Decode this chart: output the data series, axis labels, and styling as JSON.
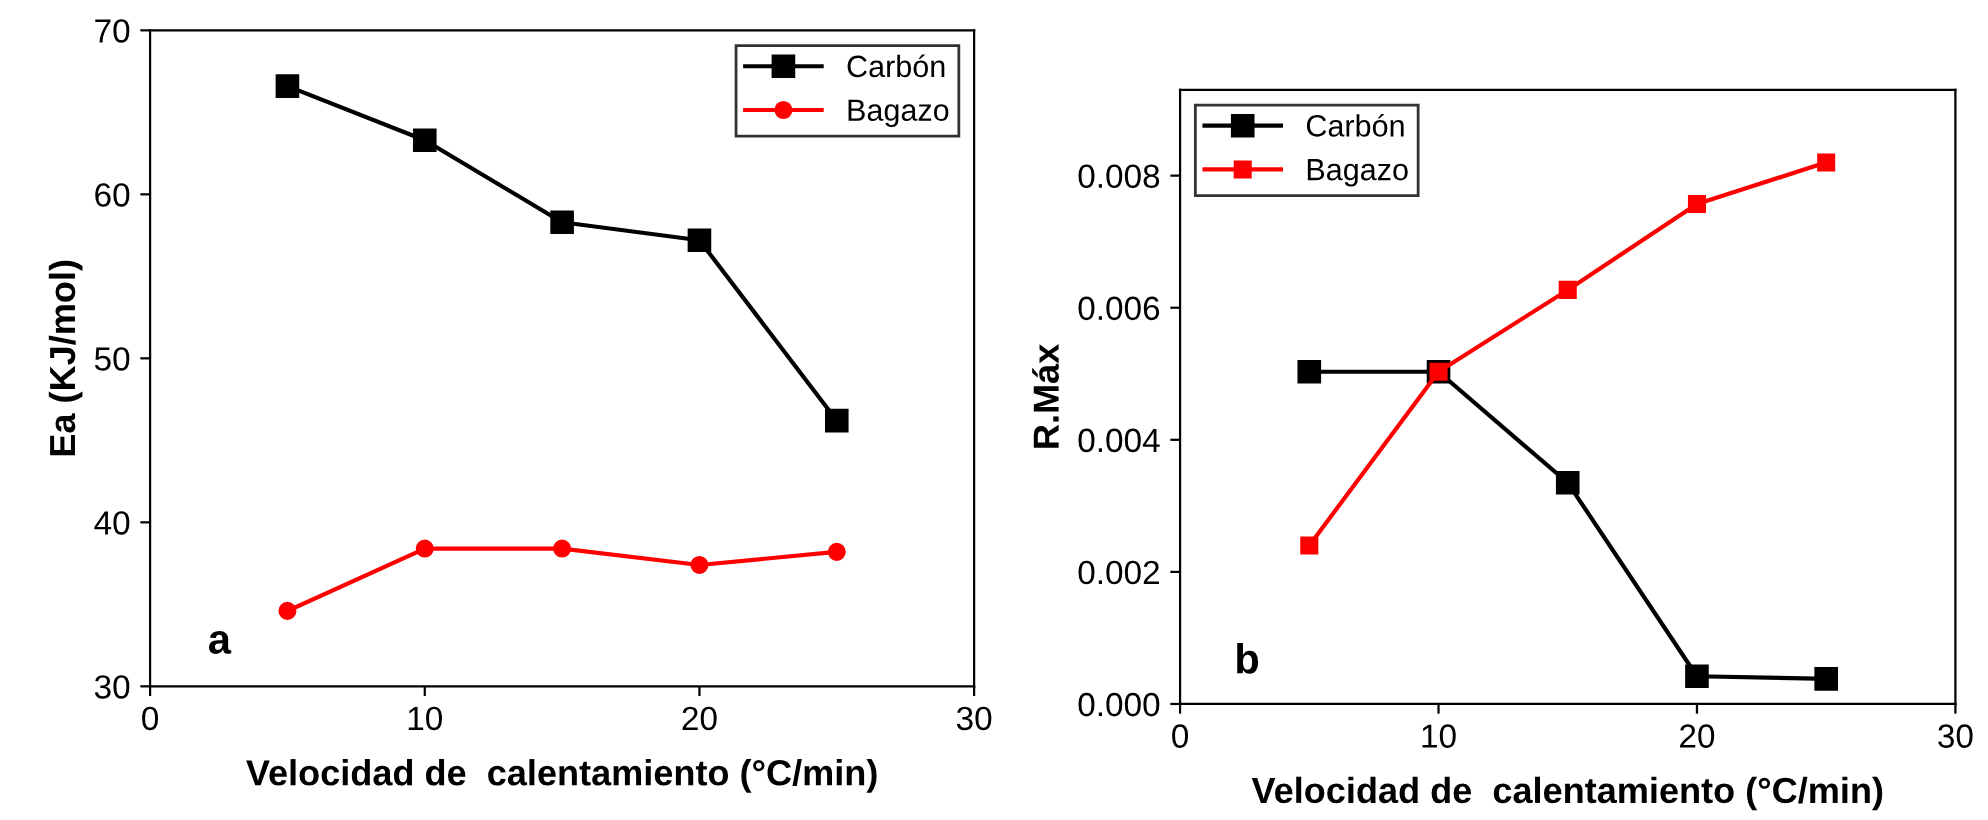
{
  "chart_data": [
    {
      "type": "line",
      "xlabel": "Velocidad de  calentamiento (°C/min)",
      "ylabel": "Ea (KJ/mol)",
      "x": [
        5,
        10,
        15,
        20,
        25
      ],
      "series": [
        {
          "name": "Carbón",
          "color": "#000000",
          "marker": "square",
          "values": [
            66.6,
            63.3,
            58.3,
            57.2,
            46.2
          ]
        },
        {
          "name": "Bagazo",
          "color": "#ff0000",
          "marker": "circle",
          "values": [
            34.6,
            38.4,
            38.4,
            37.4,
            38.2
          ]
        }
      ],
      "xlim": [
        0,
        30
      ],
      "xticks": [
        0,
        10,
        20,
        30
      ],
      "ylim": [
        30,
        70
      ],
      "yticks": [
        30,
        40,
        50,
        60,
        70
      ],
      "legend": "top right",
      "grid": false,
      "annotations": [
        "a"
      ]
    },
    {
      "type": "line",
      "xlabel": "Velocidad de  calentamiento (°C/min)",
      "ylabel": "R.Máx",
      "x": [
        5,
        10,
        15,
        20,
        25
      ],
      "series": [
        {
          "name": "Carbón",
          "color": "#000000",
          "marker": "square",
          "values": [
            0.00503,
            0.00503,
            0.00335,
            0.00042,
            0.00038
          ]
        },
        {
          "name": "Bagazo",
          "color": "#ff0000",
          "marker": "square",
          "values": [
            0.0024,
            0.00503,
            0.00627,
            0.00757,
            0.0082
          ]
        }
      ],
      "xlim": [
        0,
        30
      ],
      "xticks": [
        0,
        10,
        20,
        30
      ],
      "ylim": [
        0,
        0.0093
      ],
      "yticks": [
        {
          "value": 0,
          "label": "0.000"
        },
        {
          "value": 0.002,
          "label": "0.002"
        },
        {
          "value": 0.004,
          "label": "0.004"
        },
        {
          "value": 0.006,
          "label": "0.006"
        },
        {
          "value": 0.008,
          "label": "0.008"
        }
      ],
      "legend": "top left",
      "grid": false,
      "annotations": [
        "b"
      ]
    }
  ]
}
